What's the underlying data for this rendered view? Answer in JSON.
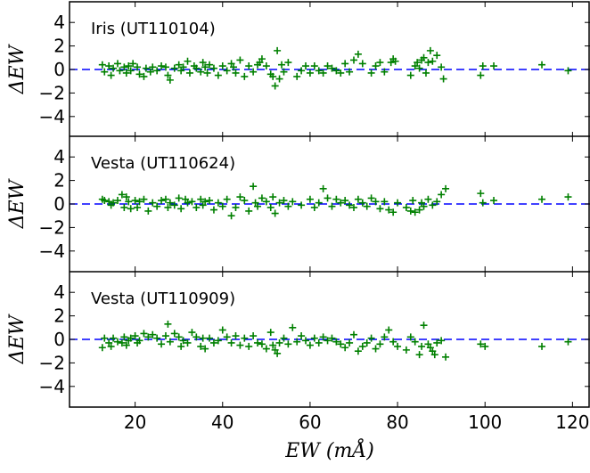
{
  "chart_data": {
    "type": "scatter",
    "shared_x": {
      "label": "EW (mÅ)",
      "xlim": [
        5,
        124
      ],
      "ticks": [
        20,
        40,
        60,
        80,
        100,
        120
      ]
    },
    "ylabel": "ΔEW",
    "ylim": [
      -5,
      5
    ],
    "yticks": [
      4,
      2,
      0,
      -2,
      -4
    ],
    "reference_line": {
      "y": 0,
      "style": "dashed",
      "color": "#0000ff"
    },
    "marker": {
      "shape": "plus",
      "color": "#008000"
    },
    "panels": [
      {
        "label": "Iris (UT110104)",
        "points": [
          [
            12.5,
            0.4
          ],
          [
            13,
            -0.2
          ],
          [
            14,
            0.3
          ],
          [
            14.5,
            -0.5
          ],
          [
            15,
            0.1
          ],
          [
            16,
            0.5
          ],
          [
            16.5,
            -0.1
          ],
          [
            17.5,
            0.2
          ],
          [
            18,
            -0.3
          ],
          [
            18.5,
            0.3
          ],
          [
            19,
            -0.1
          ],
          [
            19.5,
            0.5
          ],
          [
            20.5,
            0.2
          ],
          [
            21,
            -0.4
          ],
          [
            22,
            -0.6
          ],
          [
            22.5,
            0.1
          ],
          [
            23.5,
            -0.2
          ],
          [
            24,
            0.2
          ],
          [
            25,
            -0.1
          ],
          [
            26,
            0.3
          ],
          [
            27,
            0.2
          ],
          [
            27.5,
            -0.5
          ],
          [
            28,
            -0.9
          ],
          [
            29,
            0.1
          ],
          [
            30,
            0.4
          ],
          [
            30.5,
            -0.1
          ],
          [
            31,
            0.2
          ],
          [
            32,
            0.7
          ],
          [
            32.5,
            -0.3
          ],
          [
            33.5,
            0.3
          ],
          [
            34,
            0.1
          ],
          [
            35,
            -0.2
          ],
          [
            35.5,
            0.6
          ],
          [
            36,
            0.2
          ],
          [
            36.5,
            -0.3
          ],
          [
            37,
            0.4
          ],
          [
            38,
            0.1
          ],
          [
            39,
            -0.5
          ],
          [
            40,
            0.3
          ],
          [
            41,
            -0.1
          ],
          [
            42,
            0.5
          ],
          [
            42.5,
            0.2
          ],
          [
            43,
            -0.3
          ],
          [
            44,
            0.8
          ],
          [
            45,
            -0.6
          ],
          [
            46,
            0.3
          ],
          [
            47,
            -0.2
          ],
          [
            48,
            0.4
          ],
          [
            48.5,
            0.6
          ],
          [
            49,
            0.9
          ],
          [
            50,
            0.3
          ],
          [
            51,
            -0.4
          ],
          [
            51.5,
            -0.6
          ],
          [
            52,
            -1.4
          ],
          [
            52.5,
            1.6
          ],
          [
            53,
            -0.8
          ],
          [
            53.5,
            0.4
          ],
          [
            54,
            -0.2
          ],
          [
            55,
            0.6
          ],
          [
            57,
            -0.6
          ],
          [
            58,
            -0.1
          ],
          [
            59,
            0.3
          ],
          [
            60,
            -0.3
          ],
          [
            61,
            0.3
          ],
          [
            62,
            -0.1
          ],
          [
            63,
            -0.3
          ],
          [
            64,
            0.3
          ],
          [
            65,
            0.1
          ],
          [
            66,
            -0.1
          ],
          [
            67,
            -0.3
          ],
          [
            68,
            0.5
          ],
          [
            69,
            -0.2
          ],
          [
            70,
            0.8
          ],
          [
            71,
            1.3
          ],
          [
            72,
            0.5
          ],
          [
            74,
            -0.3
          ],
          [
            75,
            0.3
          ],
          [
            76,
            0.6
          ],
          [
            77,
            -0.2
          ],
          [
            78.5,
            0.6
          ],
          [
            79,
            0.9
          ],
          [
            79.5,
            0.7
          ],
          [
            83,
            -0.5
          ],
          [
            84,
            0.3
          ],
          [
            84.5,
            0.6
          ],
          [
            85,
            0.1
          ],
          [
            85.5,
            0.8
          ],
          [
            86,
            1.0
          ],
          [
            86.5,
            -0.3
          ],
          [
            87,
            0.6
          ],
          [
            87.5,
            1.6
          ],
          [
            88,
            0.7
          ],
          [
            89,
            1.2
          ],
          [
            90,
            0.2
          ],
          [
            90.5,
            -0.8
          ],
          [
            99,
            -0.5
          ],
          [
            99.5,
            0.3
          ],
          [
            102,
            0.3
          ],
          [
            113,
            0.4
          ],
          [
            119,
            -0.1
          ]
        ]
      },
      {
        "label": "Vesta (UT110624)",
        "points": [
          [
            12.5,
            0.4
          ],
          [
            13,
            0.3
          ],
          [
            14,
            0.2
          ],
          [
            14.5,
            -0.1
          ],
          [
            15,
            0.1
          ],
          [
            16,
            0.3
          ],
          [
            17,
            0.8
          ],
          [
            17.5,
            -0.3
          ],
          [
            18,
            0.6
          ],
          [
            18.5,
            0.2
          ],
          [
            19,
            -0.4
          ],
          [
            20,
            0.3
          ],
          [
            20.5,
            -0.3
          ],
          [
            21,
            0.2
          ],
          [
            22,
            0.4
          ],
          [
            23,
            -0.6
          ],
          [
            24,
            0.1
          ],
          [
            25,
            -0.2
          ],
          [
            26,
            0.3
          ],
          [
            27,
            0.4
          ],
          [
            27.5,
            -0.3
          ],
          [
            28,
            0.1
          ],
          [
            29,
            -0.1
          ],
          [
            30,
            0.5
          ],
          [
            30.5,
            -0.4
          ],
          [
            31.5,
            0.4
          ],
          [
            32,
            0.1
          ],
          [
            33,
            0.2
          ],
          [
            34,
            -0.3
          ],
          [
            35,
            0.4
          ],
          [
            35.5,
            -0.1
          ],
          [
            36,
            0.2
          ],
          [
            37,
            0.3
          ],
          [
            38,
            -0.5
          ],
          [
            39,
            0.1
          ],
          [
            40,
            -0.2
          ],
          [
            41,
            0.4
          ],
          [
            42,
            -1.0
          ],
          [
            43,
            -0.3
          ],
          [
            44,
            0.6
          ],
          [
            45,
            0.3
          ],
          [
            46,
            -0.6
          ],
          [
            47,
            1.5
          ],
          [
            47.5,
            0.1
          ],
          [
            48,
            -0.2
          ],
          [
            49,
            0.5
          ],
          [
            50,
            0.2
          ],
          [
            51,
            -0.3
          ],
          [
            51.5,
            0.6
          ],
          [
            52,
            -0.8
          ],
          [
            53,
            0.1
          ],
          [
            54,
            0.3
          ],
          [
            55,
            -0.2
          ],
          [
            56,
            0.2
          ],
          [
            58,
            -0.1
          ],
          [
            60,
            0.4
          ],
          [
            61,
            -0.3
          ],
          [
            62,
            0.1
          ],
          [
            63,
            1.3
          ],
          [
            64,
            0.5
          ],
          [
            65,
            -0.2
          ],
          [
            66,
            0.4
          ],
          [
            67,
            0.1
          ],
          [
            68,
            0.3
          ],
          [
            69,
            -0.1
          ],
          [
            70,
            -0.3
          ],
          [
            71,
            0.4
          ],
          [
            72,
            0.1
          ],
          [
            73,
            -0.2
          ],
          [
            74,
            0.5
          ],
          [
            75,
            0.2
          ],
          [
            76,
            -0.4
          ],
          [
            77,
            0.2
          ],
          [
            78,
            -0.5
          ],
          [
            79,
            -0.7
          ],
          [
            80,
            0.1
          ],
          [
            82,
            -0.3
          ],
          [
            83,
            -0.6
          ],
          [
            83.5,
            0.3
          ],
          [
            84,
            -0.7
          ],
          [
            85,
            -0.5
          ],
          [
            85.5,
            0.1
          ],
          [
            86,
            -0.2
          ],
          [
            87,
            0.4
          ],
          [
            88,
            -0.1
          ],
          [
            89,
            0.2
          ],
          [
            90,
            0.8
          ],
          [
            91,
            1.3
          ],
          [
            99,
            0.9
          ],
          [
            99.5,
            0.1
          ],
          [
            102,
            0.3
          ],
          [
            113,
            0.4
          ],
          [
            119,
            0.6
          ]
        ]
      },
      {
        "label": "Vesta (UT110909)",
        "points": [
          [
            12.5,
            -0.7
          ],
          [
            13,
            0.1
          ],
          [
            14,
            -0.3
          ],
          [
            14.5,
            -0.6
          ],
          [
            15,
            0.1
          ],
          [
            16,
            -0.2
          ],
          [
            17,
            -0.3
          ],
          [
            17.5,
            0.2
          ],
          [
            18,
            -0.5
          ],
          [
            18.5,
            -0.1
          ],
          [
            19,
            0.1
          ],
          [
            20,
            0.3
          ],
          [
            20.5,
            -0.3
          ],
          [
            21,
            -0.1
          ],
          [
            22,
            0.5
          ],
          [
            23,
            0.2
          ],
          [
            24,
            0.4
          ],
          [
            25,
            0.1
          ],
          [
            26,
            -0.4
          ],
          [
            27,
            0.3
          ],
          [
            27.5,
            1.3
          ],
          [
            28,
            -0.2
          ],
          [
            29,
            0.5
          ],
          [
            30,
            0.2
          ],
          [
            30.5,
            -0.6
          ],
          [
            31,
            -0.1
          ],
          [
            32,
            -0.3
          ],
          [
            33,
            0.6
          ],
          [
            34,
            0.2
          ],
          [
            35,
            -0.6
          ],
          [
            35.5,
            0.1
          ],
          [
            36,
            -0.8
          ],
          [
            37,
            0.1
          ],
          [
            38,
            -0.3
          ],
          [
            39,
            -0.1
          ],
          [
            40,
            0.8
          ],
          [
            41,
            0.2
          ],
          [
            42,
            -0.3
          ],
          [
            43,
            0.3
          ],
          [
            44,
            -0.5
          ],
          [
            45,
            0.1
          ],
          [
            46,
            -0.6
          ],
          [
            47,
            0.3
          ],
          [
            48,
            -0.3
          ],
          [
            49,
            -0.4
          ],
          [
            50,
            -0.8
          ],
          [
            51,
            0.6
          ],
          [
            51.5,
            -0.5
          ],
          [
            52,
            -0.9
          ],
          [
            52.5,
            -1.2
          ],
          [
            53,
            -0.3
          ],
          [
            54,
            0.1
          ],
          [
            55,
            -0.4
          ],
          [
            56,
            1.0
          ],
          [
            57,
            -0.2
          ],
          [
            58,
            0.3
          ],
          [
            59,
            -0.1
          ],
          [
            60,
            -0.5
          ],
          [
            61,
            0.1
          ],
          [
            62,
            -0.3
          ],
          [
            63,
            0.2
          ],
          [
            64,
            -0.1
          ],
          [
            65,
            0.1
          ],
          [
            66,
            -0.2
          ],
          [
            67,
            -0.4
          ],
          [
            68,
            -0.7
          ],
          [
            69,
            -0.3
          ],
          [
            70,
            0.4
          ],
          [
            71,
            -1.0
          ],
          [
            72,
            -0.6
          ],
          [
            73,
            -0.3
          ],
          [
            74,
            0.1
          ],
          [
            75,
            -0.8
          ],
          [
            76,
            -0.4
          ],
          [
            77,
            0.2
          ],
          [
            78,
            0.8
          ],
          [
            79,
            -0.2
          ],
          [
            80,
            -0.6
          ],
          [
            82,
            -0.9
          ],
          [
            83,
            0.2
          ],
          [
            84,
            -0.2
          ],
          [
            85,
            -1.3
          ],
          [
            85.5,
            -0.6
          ],
          [
            86,
            1.2
          ],
          [
            87,
            -0.4
          ],
          [
            87.5,
            -0.7
          ],
          [
            88,
            -1.0
          ],
          [
            88.5,
            -1.3
          ],
          [
            89,
            -0.3
          ],
          [
            90,
            -0.1
          ],
          [
            91,
            -1.5
          ],
          [
            99,
            -0.4
          ],
          [
            100,
            -0.6
          ],
          [
            113,
            -0.6
          ],
          [
            119,
            -0.2
          ]
        ]
      }
    ]
  }
}
